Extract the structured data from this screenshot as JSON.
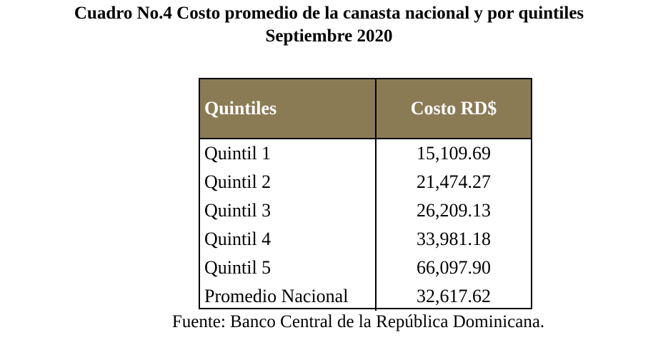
{
  "title": {
    "line1": "Cuadro No.4 Costo promedio de la canasta nacional y por quintiles",
    "line2": "Septiembre 2020"
  },
  "table": {
    "headers": [
      "Quintiles",
      "Costo RD$"
    ],
    "header_bg": "#8b7b55",
    "rows": [
      {
        "name": "Quintil 1",
        "value": "15,109.69"
      },
      {
        "name": "Quintil 2",
        "value": "21,474.27"
      },
      {
        "name": "Quintil 3",
        "value": "26,209.13"
      },
      {
        "name": "Quintil 4",
        "value": "33,981.18"
      },
      {
        "name": "Quintil 5",
        "value": "66,097.90"
      },
      {
        "name": "Promedio Nacional",
        "value": "32,617.62"
      }
    ]
  },
  "source": "Fuente: Banco Central de la República Dominicana."
}
